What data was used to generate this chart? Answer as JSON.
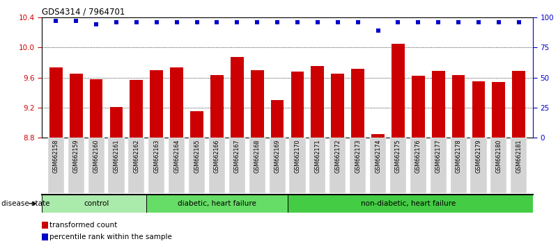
{
  "title": "GDS4314 / 7964701",
  "samples": [
    "GSM662158",
    "GSM662159",
    "GSM662160",
    "GSM662161",
    "GSM662162",
    "GSM662163",
    "GSM662164",
    "GSM662165",
    "GSM662166",
    "GSM662167",
    "GSM662168",
    "GSM662169",
    "GSM662170",
    "GSM662171",
    "GSM662172",
    "GSM662173",
    "GSM662174",
    "GSM662175",
    "GSM662176",
    "GSM662177",
    "GSM662178",
    "GSM662179",
    "GSM662180",
    "GSM662181"
  ],
  "bar_values": [
    9.73,
    9.65,
    9.58,
    9.21,
    9.57,
    9.7,
    9.73,
    9.15,
    9.63,
    9.87,
    9.7,
    9.3,
    9.68,
    9.75,
    9.65,
    9.72,
    8.85,
    10.05,
    9.62,
    9.69,
    9.63,
    9.55,
    9.54,
    9.69
  ],
  "percentile_values": [
    97,
    97,
    94,
    96,
    96,
    96,
    96,
    96,
    96,
    96,
    96,
    96,
    96,
    96,
    96,
    96,
    89,
    96,
    96,
    96,
    96,
    96,
    96,
    96
  ],
  "bar_color": "#cc0000",
  "percentile_color": "#0000cc",
  "ylim_left": [
    8.8,
    10.4
  ],
  "ylim_right": [
    0,
    100
  ],
  "yticks_left": [
    8.8,
    9.2,
    9.6,
    10.0,
    10.4
  ],
  "yticks_right": [
    0,
    25,
    50,
    75,
    100
  ],
  "groups": [
    {
      "label": "control",
      "start": 0,
      "end": 5,
      "color": "#aaeaaa"
    },
    {
      "label": "diabetic, heart failure",
      "start": 5,
      "end": 12,
      "color": "#66dd66"
    },
    {
      "label": "non-diabetic, heart failure",
      "start": 12,
      "end": 24,
      "color": "#44cc44"
    }
  ],
  "disease_state_label": "disease state",
  "legend_items": [
    {
      "label": "transformed count",
      "color": "#cc0000"
    },
    {
      "label": "percentile rank within the sample",
      "color": "#0000cc"
    }
  ],
  "bg_color": "#ffffff",
  "tick_label_color_left": "#cc0000",
  "tick_label_color_right": "#0000cc",
  "xlabel_bg": "#d4d4d4"
}
